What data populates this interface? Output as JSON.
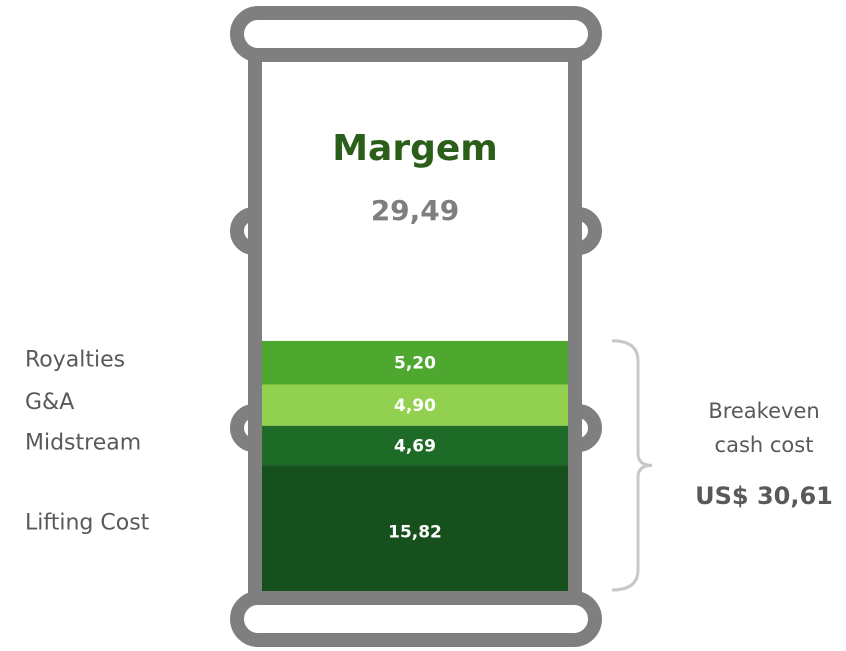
{
  "chart_data": {
    "type": "stacked_barrel",
    "series": [
      {
        "name": "Lifting Cost",
        "color": "#16501d",
        "values": [
          15.82
        ],
        "value_labels": [
          "15,82"
        ]
      },
      {
        "name": "Midstream",
        "color": "#1d6b26",
        "values": [
          4.69
        ],
        "value_labels": [
          "4,69"
        ]
      },
      {
        "name": "G&A",
        "color": "#92d050",
        "values": [
          4.9
        ],
        "value_labels": [
          "4,90"
        ]
      },
      {
        "name": "Royalties",
        "color": "#4ea72e",
        "values": [
          5.2
        ],
        "value_labels": [
          "5,20"
        ]
      },
      {
        "name": "Margem",
        "color": "#ffffff",
        "values": [
          29.49
        ],
        "value_labels": [
          "29,49"
        ]
      }
    ],
    "annotation": {
      "text": [
        "Breakeven",
        "cash cost"
      ],
      "value": 30.61,
      "value_label": "US$ 30,61"
    }
  }
}
